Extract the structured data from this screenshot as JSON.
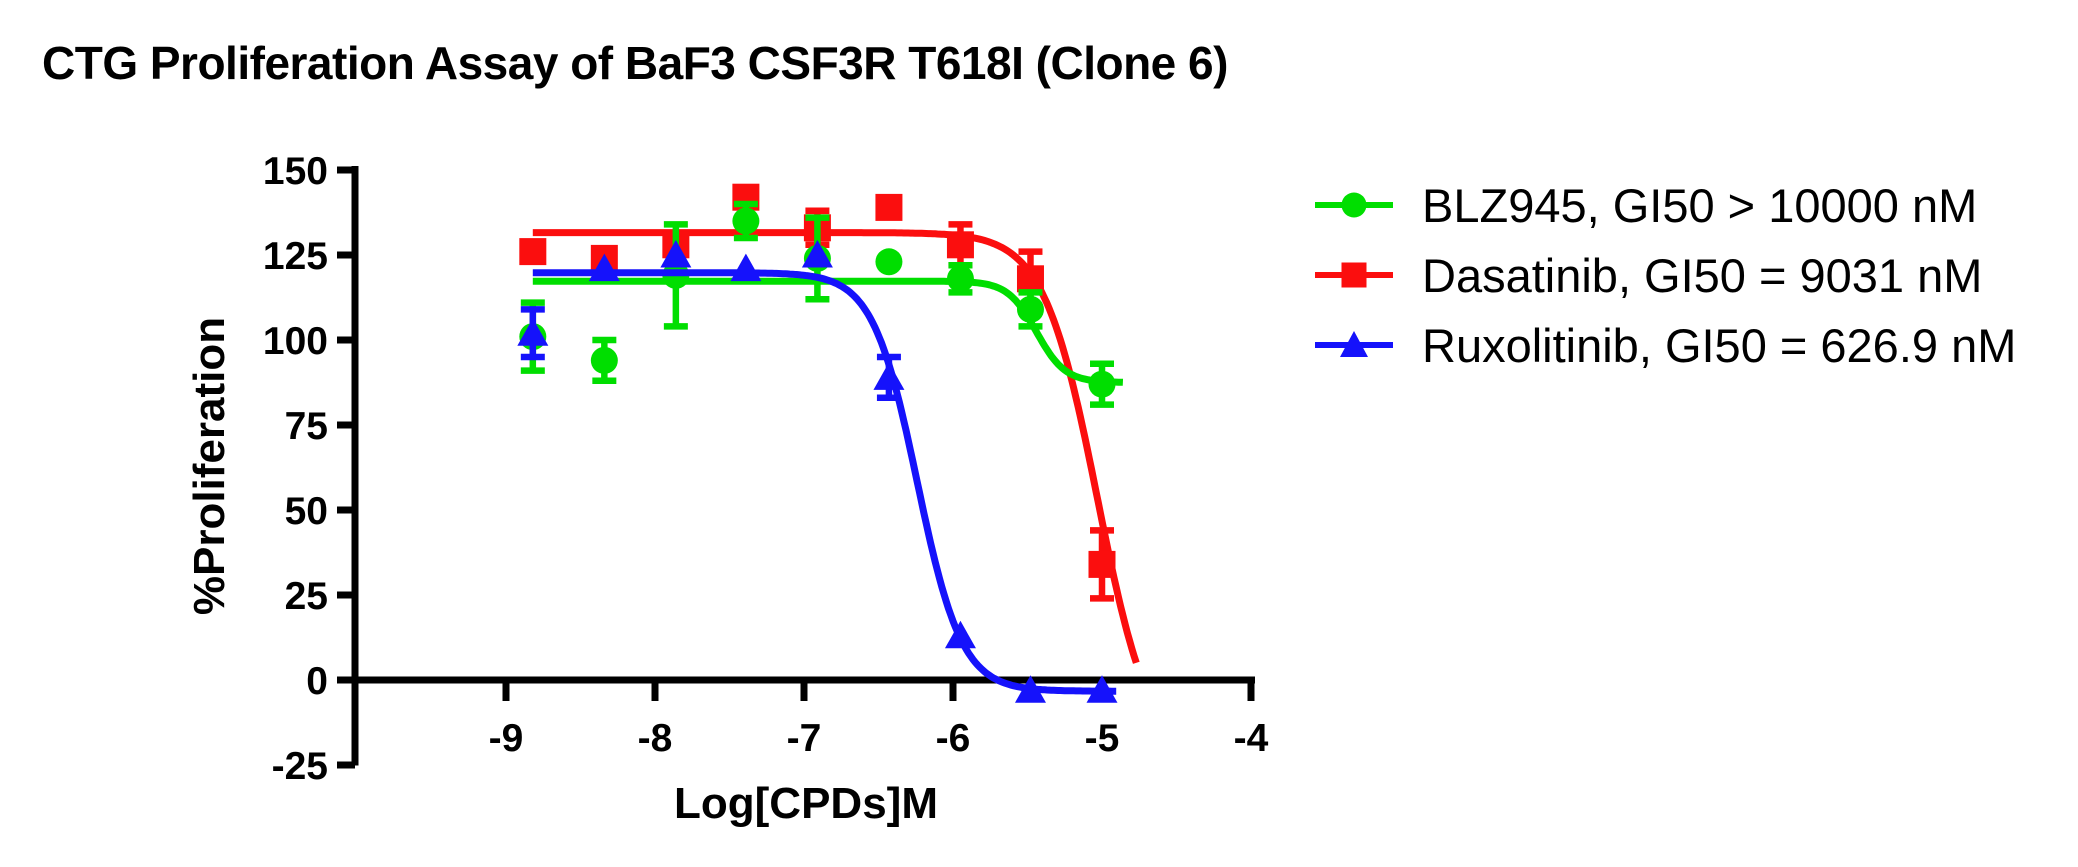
{
  "header": {
    "title": "CTG Proliferation Assay of BaF3 CSF3R T618I (Clone 6)"
  },
  "chart_data": {
    "type": "scatter",
    "title": "CTG Proliferation Assay of BaF3 CSF3R T618I (Clone 6)",
    "xlabel": "Log[CPDs]M",
    "ylabel": "%Proliferation",
    "xlim": [
      -10.0,
      -3.95
    ],
    "ylim": [
      -25,
      150
    ],
    "x_ticks": [
      -9,
      -8,
      -7,
      -6,
      -5,
      -4
    ],
    "y_ticks": [
      150,
      125,
      100,
      75,
      50,
      25,
      0,
      -25
    ],
    "grid": false,
    "legend_position": "right",
    "axis_color": "#000000",
    "x": [
      -8.82,
      -8.34,
      -7.86,
      -7.39,
      -6.91,
      -6.43,
      -5.95,
      -5.48,
      -5.0
    ],
    "series": [
      {
        "name": "BLZ945",
        "legend": "BLZ945, GI50 > 10000 nM",
        "gi50": "> 10000 nM",
        "color": "#00DE00",
        "marker": "circle",
        "values": [
          101,
          94,
          119,
          135,
          124,
          123,
          118,
          109,
          87
        ],
        "errors": [
          10,
          6,
          15,
          5,
          12,
          0,
          4,
          5,
          6
        ],
        "fit": {
          "top": 117.3,
          "bottom": 87.5,
          "logec50": -5.44,
          "hill": 4.5,
          "range": [
            -8.82,
            -4.85
          ]
        }
      },
      {
        "name": "Dasatinib",
        "legend": "Dasatinib, GI50 = 9031 nM",
        "gi50": "= 9031 nM",
        "color": "#FB0E0E",
        "marker": "square",
        "values": [
          126,
          124,
          128,
          142,
          133,
          139,
          128,
          118,
          34
        ],
        "errors": [
          0,
          0,
          0,
          0,
          5,
          0,
          6,
          8,
          10
        ],
        "fit": {
          "top": 131.6,
          "bottom": -25,
          "logec50": -5.03,
          "hill": 2.4,
          "range": [
            -8.82,
            -4.77
          ]
        }
      },
      {
        "name": "Ruxolitinib",
        "legend": "Ruxolitinib, GI50 = 626.9 nM",
        "gi50": "= 626.9 nM",
        "color": "#1512FB",
        "marker": "triangle",
        "values": [
          102,
          121,
          125,
          121,
          125,
          89,
          13,
          -3,
          -3
        ],
        "errors": [
          7,
          0,
          0,
          0,
          0,
          6,
          0,
          0,
          0
        ],
        "fit": {
          "top": 119.8,
          "bottom": -3.3,
          "logec50": -6.24,
          "hill": 2.9,
          "range": [
            -8.82,
            -4.9
          ]
        }
      }
    ]
  }
}
